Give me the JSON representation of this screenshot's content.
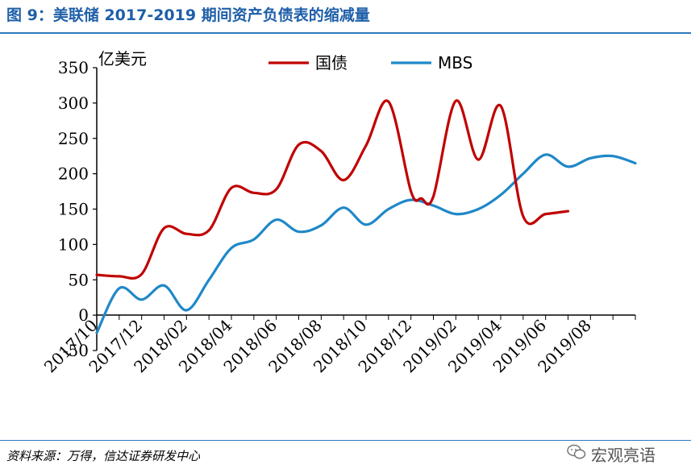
{
  "figure": {
    "title": "图 9：美联储 2017-2019 期间资产负债表的缩减量",
    "source": "资料来源：万得，信达证券研发中心",
    "watermark": "宏观亮语",
    "watermark_icon": "wechat-icon"
  },
  "colors": {
    "title": "#1f5fa8",
    "rule": "#2b7bbd",
    "guozhai": "#c00000",
    "mbs": "#1f88c8"
  },
  "chart_data": {
    "type": "line",
    "title": "",
    "ylabel": "亿美元",
    "xlabel": "",
    "ylim": [
      -50,
      350
    ],
    "yticks": [
      -50,
      0,
      50,
      100,
      150,
      200,
      250,
      300,
      350
    ],
    "xrange": [
      "2017-10",
      "2019-10"
    ],
    "xticks": [
      "2017/10",
      "2017/12",
      "2018/02",
      "2018/04",
      "2018/06",
      "2018/08",
      "2018/10",
      "2018/12",
      "2019/02",
      "2019/04",
      "2019/06",
      "2019/08"
    ],
    "grid": false,
    "legend": "top",
    "series": [
      {
        "name": "国债",
        "color": "#c00000",
        "points": [
          [
            "2017-10",
            57
          ],
          [
            "2017-11",
            55
          ],
          [
            "2017-12",
            58
          ],
          [
            "2018-01",
            123
          ],
          [
            "2018-02",
            115
          ],
          [
            "2018-03",
            120
          ],
          [
            "2018-04",
            180
          ],
          [
            "2018-05",
            173
          ],
          [
            "2018-06",
            178
          ],
          [
            "2018-07",
            241
          ],
          [
            "2018-08",
            232
          ],
          [
            "2018-09",
            191
          ],
          [
            "2018-10",
            240
          ],
          [
            "2018-11",
            302
          ],
          [
            "2018-12",
            175
          ],
          [
            "2018-12-15",
            165
          ],
          [
            "2019-01",
            168
          ],
          [
            "2019-02",
            303
          ],
          [
            "2019-03",
            220
          ],
          [
            "2019-04",
            296
          ],
          [
            "2019-05",
            140
          ],
          [
            "2019-06",
            143
          ],
          [
            "2019-07",
            147
          ]
        ]
      },
      {
        "name": "MBS",
        "color": "#1f88c8",
        "points": [
          [
            "2017-10",
            -25
          ],
          [
            "2017-11",
            38
          ],
          [
            "2017-12",
            22
          ],
          [
            "2018-01",
            42
          ],
          [
            "2018-02",
            7
          ],
          [
            "2018-03",
            50
          ],
          [
            "2018-04",
            95
          ],
          [
            "2018-05",
            107
          ],
          [
            "2018-06",
            135
          ],
          [
            "2018-07",
            118
          ],
          [
            "2018-08",
            127
          ],
          [
            "2018-09",
            152
          ],
          [
            "2018-10",
            128
          ],
          [
            "2018-11",
            150
          ],
          [
            "2018-12",
            163
          ],
          [
            "2019-01",
            155
          ],
          [
            "2019-02",
            143
          ],
          [
            "2019-03",
            150
          ],
          [
            "2019-04",
            170
          ],
          [
            "2019-05",
            200
          ],
          [
            "2019-06",
            227
          ],
          [
            "2019-07",
            210
          ],
          [
            "2019-08",
            222
          ],
          [
            "2019-09",
            225
          ],
          [
            "2019-10",
            215
          ]
        ]
      }
    ]
  }
}
